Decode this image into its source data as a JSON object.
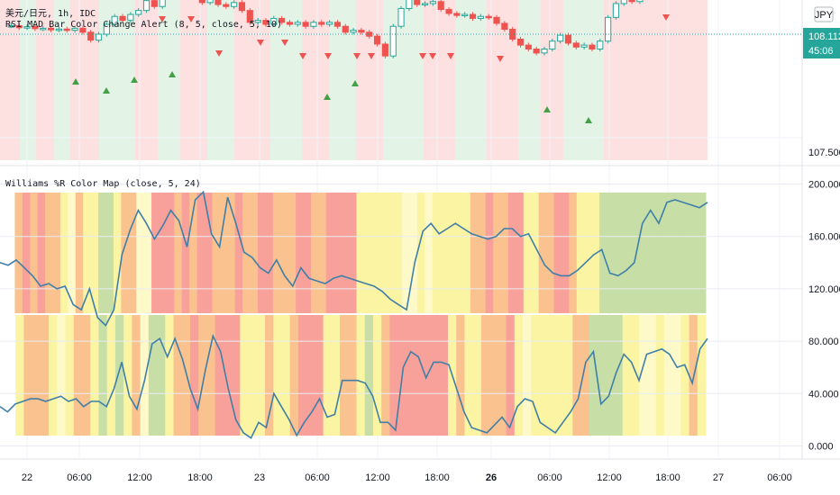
{
  "chart_data": [
    {
      "type": "candlestick",
      "title": "美元/日元, 1h, IDC",
      "indicator_label": "RSI MAD Bar Color Change Alert (8, 5, close, 5, 10)",
      "currency_badge": "JPY",
      "price_ticks": [
        "108.112",
        "107.500"
      ],
      "last_price": "108.112",
      "countdown": "45:06",
      "colors": {
        "up": "#26a69a",
        "down": "#ef5350",
        "bg_red": "#fde0e0",
        "bg_green": "#e3f4e6",
        "badge": "#26a69a"
      }
    },
    {
      "type": "line",
      "title": "Williams %R Color Map (close, 5, 24)",
      "y_ticks": [
        "200.000",
        "160.000",
        "120.000",
        "80.000",
        "40.000",
        "0.000"
      ],
      "ylim": [
        -10,
        210
      ],
      "series": [
        {
          "values": [
            140,
            138,
            142,
            136,
            130,
            122,
            124,
            120,
            122,
            108,
            104,
            120,
            98,
            92,
            104,
            146,
            165,
            180,
            170,
            158,
            168,
            180,
            172,
            152,
            188,
            194,
            162,
            152,
            190,
            170,
            148,
            144,
            136,
            132,
            142,
            130,
            122,
            136,
            128,
            126,
            124,
            128,
            130,
            128,
            126,
            124,
            122,
            118,
            112,
            108,
            104,
            140,
            164,
            170,
            162,
            166,
            170,
            166,
            162,
            160,
            158,
            160,
            166,
            166,
            160,
            162,
            150,
            138,
            132,
            130,
            130,
            134,
            140,
            146,
            150,
            132,
            130,
            134,
            140,
            170,
            180,
            170,
            186,
            188,
            186,
            184,
            182,
            186
          ]
        },
        {
          "values": [
            30,
            26,
            32,
            34,
            36,
            36,
            34,
            36,
            38,
            34,
            36,
            30,
            34,
            34,
            30,
            44,
            64,
            38,
            28,
            50,
            78,
            82,
            68,
            82,
            66,
            44,
            28,
            58,
            84,
            72,
            44,
            20,
            10,
            6,
            18,
            14,
            40,
            30,
            20,
            8,
            18,
            26,
            36,
            22,
            24,
            50,
            50,
            50,
            48,
            38,
            18,
            18,
            12,
            60,
            72,
            68,
            52,
            64,
            64,
            62,
            44,
            26,
            14,
            12,
            10,
            16,
            22,
            14,
            30,
            36,
            34,
            18,
            14,
            10,
            18,
            26,
            36,
            64,
            72,
            32,
            38,
            56,
            70,
            64,
            50,
            70,
            72,
            74,
            70,
            60,
            62,
            48,
            74,
            82
          ]
        }
      ]
    }
  ],
  "x_ticks": [
    "22",
    "06:00",
    "12:00",
    "18:00",
    "23",
    "06:00",
    "12:00",
    "18:00",
    "26",
    "06:00",
    "12:00",
    "18:00",
    "27",
    "06:00"
  ],
  "bold_ticks": [
    "26"
  ],
  "ui": {
    "camera_icon": "camera-icon",
    "plus_icon": "plus-icon"
  }
}
